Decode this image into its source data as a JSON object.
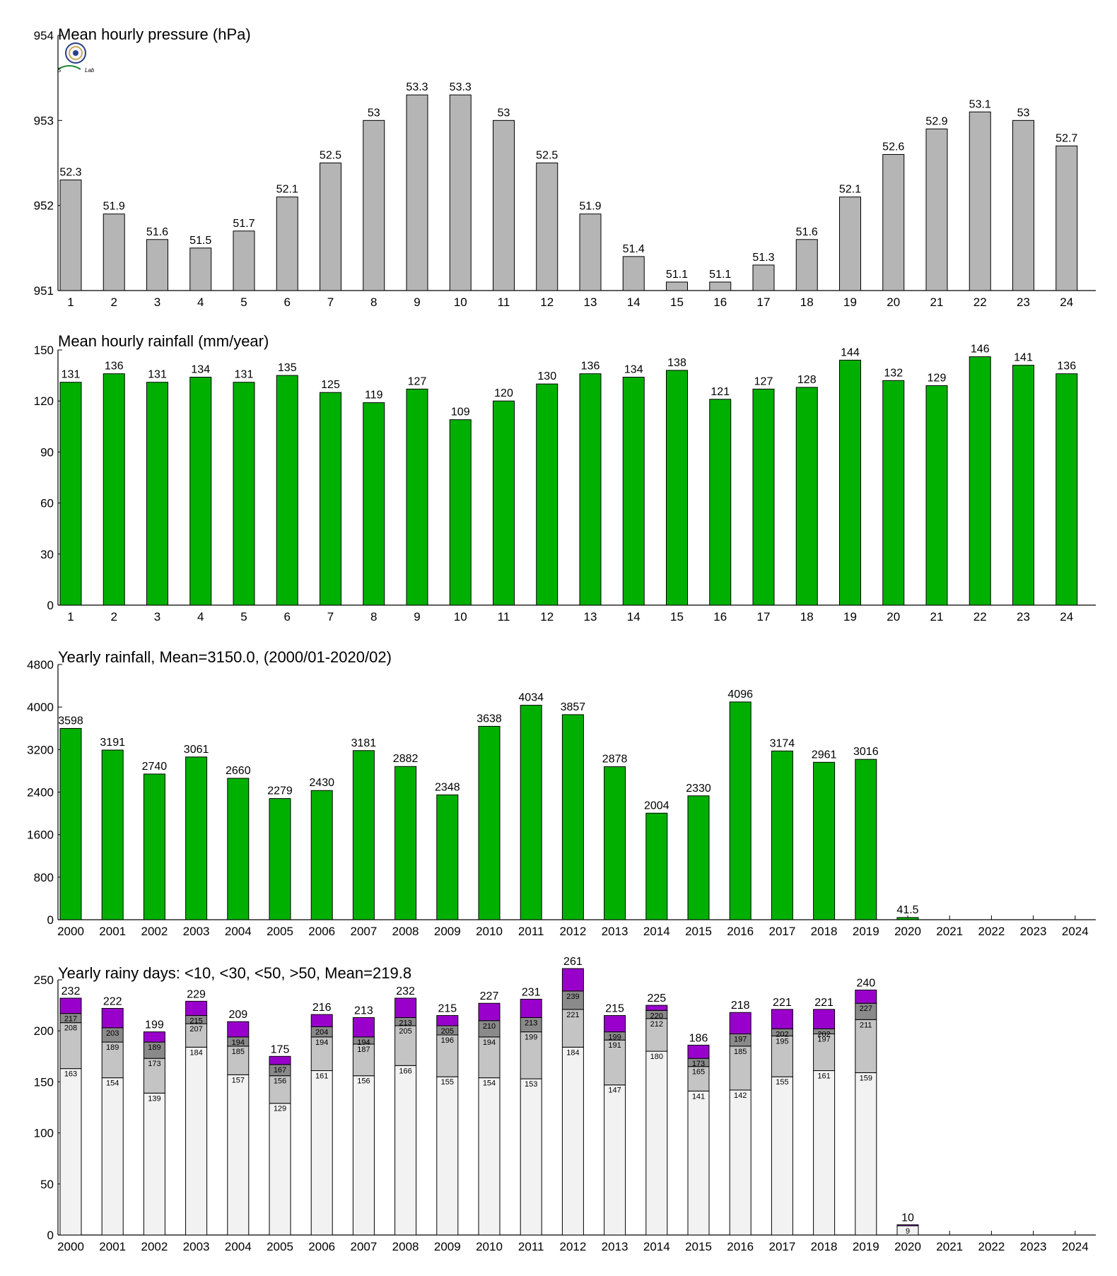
{
  "colors": {
    "pressure_bar": "#b5b5b5",
    "rain_bar": "#00b000",
    "days_lt10": "#f2f2f2",
    "days_lt30": "#c4c4c4",
    "days_lt50": "#8a8a8a",
    "days_gt50": "#9900cc",
    "axis": "#000000"
  },
  "logo": {
    "icon": "seal-logo-icon",
    "text": "Shwiwa Storm Lab"
  },
  "chart_data": [
    {
      "id": "pressure",
      "type": "bar",
      "title": "Mean hourly pressure (hPa)",
      "categories": [
        "1",
        "2",
        "3",
        "4",
        "5",
        "6",
        "7",
        "8",
        "9",
        "10",
        "11",
        "12",
        "13",
        "14",
        "15",
        "16",
        "17",
        "18",
        "19",
        "20",
        "21",
        "22",
        "23",
        "24"
      ],
      "values": [
        952.3,
        951.9,
        951.6,
        951.5,
        951.7,
        952.1,
        952.5,
        953,
        953.3,
        953.3,
        953,
        952.5,
        951.9,
        951.4,
        951.1,
        951.1,
        951.3,
        951.6,
        952.1,
        952.6,
        952.9,
        953.1,
        953,
        952.7
      ],
      "value_labels": [
        "52.3",
        "51.9",
        "51.6",
        "51.5",
        "51.7",
        "52.1",
        "52.5",
        "53",
        "53.3",
        "53.3",
        "53",
        "52.5",
        "51.9",
        "51.4",
        "51.1",
        "51.1",
        "51.3",
        "51.6",
        "52.1",
        "52.6",
        "52.9",
        "53.1",
        "53",
        "52.7"
      ],
      "yticks": [
        "951",
        "952",
        "953",
        "954"
      ],
      "ylim": [
        951,
        954
      ],
      "xlabel": "",
      "ylabel": "",
      "grid": false
    },
    {
      "id": "hourly_rain",
      "type": "bar",
      "title": "Mean hourly rainfall (mm/year)",
      "categories": [
        "1",
        "2",
        "3",
        "4",
        "5",
        "6",
        "7",
        "8",
        "9",
        "10",
        "11",
        "12",
        "13",
        "14",
        "15",
        "16",
        "17",
        "18",
        "19",
        "20",
        "21",
        "22",
        "23",
        "24"
      ],
      "values": [
        131,
        136,
        131,
        134,
        131,
        135,
        125,
        119,
        127,
        109,
        120,
        130,
        136,
        134,
        138,
        121,
        127,
        128,
        144,
        132,
        129,
        146,
        141,
        136
      ],
      "value_labels": [
        "131",
        "136",
        "131",
        "134",
        "131",
        "135",
        "125",
        "119",
        "127",
        "109",
        "120",
        "130",
        "136",
        "134",
        "138",
        "121",
        "127",
        "128",
        "144",
        "132",
        "129",
        "146",
        "141",
        "136"
      ],
      "yticks": [
        "0",
        "30",
        "60",
        "90",
        "120",
        "150"
      ],
      "ylim": [
        0,
        150
      ],
      "xlabel": "",
      "ylabel": "",
      "grid": false
    },
    {
      "id": "yearly_rain",
      "type": "bar",
      "title": "Yearly rainfall, Mean=3150.0, (2000/01-2020/02)",
      "categories": [
        "2000",
        "2001",
        "2002",
        "2003",
        "2004",
        "2005",
        "2006",
        "2007",
        "2008",
        "2009",
        "2010",
        "2011",
        "2012",
        "2013",
        "2014",
        "2015",
        "2016",
        "2017",
        "2018",
        "2019",
        "2020",
        "2021",
        "2022",
        "2023",
        "2024"
      ],
      "values": [
        3598,
        3191,
        2740,
        3061,
        2660,
        2279,
        2430,
        3181,
        2882,
        2348,
        3638,
        4034,
        3857,
        2878,
        2004,
        2330,
        4096,
        3174,
        2961,
        3016,
        41.5,
        null,
        null,
        null,
        null
      ],
      "value_labels": [
        "3598",
        "3191",
        "2740",
        "3061",
        "2660",
        "2279",
        "2430",
        "3181",
        "2882",
        "2348",
        "3638",
        "4034",
        "3857",
        "2878",
        "2004",
        "2330",
        "4096",
        "3174",
        "2961",
        "3016",
        "41.5",
        "",
        "",
        "",
        ""
      ],
      "yticks": [
        "0",
        "800",
        "1600",
        "2400",
        "3200",
        "4000",
        "4800"
      ],
      "ylim": [
        0,
        4800
      ],
      "xlabel": "",
      "ylabel": "",
      "grid": false
    },
    {
      "id": "rainy_days",
      "type": "bar",
      "stacked_cumulative": true,
      "title": "Yearly rainy days: <10, <30, <50, >50, Mean=219.8",
      "categories": [
        "2000",
        "2001",
        "2002",
        "2003",
        "2004",
        "2005",
        "2006",
        "2007",
        "2008",
        "2009",
        "2010",
        "2011",
        "2012",
        "2013",
        "2014",
        "2015",
        "2016",
        "2017",
        "2018",
        "2019",
        "2020",
        "2021",
        "2022",
        "2023",
        "2024"
      ],
      "series": [
        {
          "key": "lt10",
          "values": [
            163,
            154,
            139,
            184,
            157,
            129,
            161,
            156,
            166,
            155,
            154,
            153,
            184,
            147,
            180,
            141,
            142,
            155,
            161,
            159,
            9,
            null,
            null,
            null,
            null
          ]
        },
        {
          "key": "lt30",
          "values": [
            208,
            189,
            173,
            207,
            185,
            156,
            194,
            187,
            205,
            196,
            194,
            199,
            221,
            191,
            212,
            165,
            185,
            195,
            197,
            211,
            null,
            null,
            null,
            null,
            null
          ]
        },
        {
          "key": "lt50",
          "values": [
            217,
            203,
            189,
            215,
            194,
            167,
            204,
            194,
            213,
            205,
            210,
            213,
            239,
            199,
            220,
            173,
            197,
            202,
            202,
            227,
            null,
            null,
            null,
            null,
            null
          ]
        },
        {
          "key": "gt50",
          "values": [
            232,
            222,
            199,
            229,
            209,
            175,
            216,
            213,
            232,
            215,
            227,
            231,
            261,
            215,
            225,
            186,
            218,
            221,
            221,
            240,
            10,
            null,
            null,
            null,
            null
          ]
        }
      ],
      "total_labels": [
        "232",
        "222",
        "199",
        "229",
        "209",
        "175",
        "216",
        "213",
        "232",
        "215",
        "227",
        "231",
        "261",
        "215",
        "225",
        "186",
        "218",
        "221",
        "221",
        "240",
        "10",
        "",
        "",
        "",
        ""
      ],
      "yticks": [
        "0",
        "50",
        "100",
        "150",
        "200",
        "250"
      ],
      "ylim": [
        0,
        250
      ],
      "xlabel": "",
      "ylabel": "",
      "grid": false
    }
  ]
}
